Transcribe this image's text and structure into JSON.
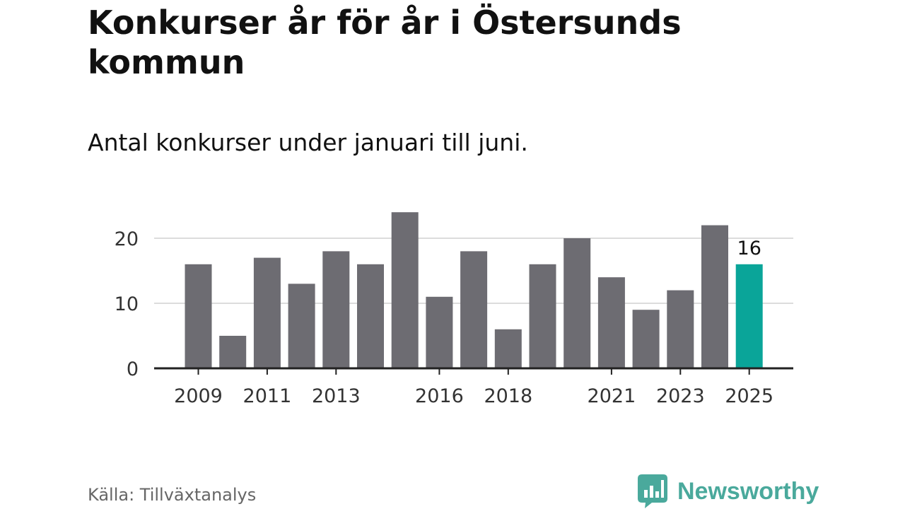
{
  "header": {
    "title": "Konkurser år för år i Östersunds kommun",
    "subtitle": "Antal konkurser under januari till juni."
  },
  "chart_data": {
    "type": "bar",
    "categories": [
      "2009",
      "2010",
      "2011",
      "2012",
      "2013",
      "2014",
      "2015",
      "2016",
      "2017",
      "2018",
      "2019",
      "2020",
      "2021",
      "2022",
      "2023",
      "2024",
      "2025"
    ],
    "values": [
      16,
      5,
      17,
      13,
      18,
      16,
      24,
      11,
      18,
      6,
      16,
      20,
      14,
      9,
      12,
      22,
      16
    ],
    "x_tick_labels": [
      "2009",
      "2011",
      "2013",
      "2016",
      "2018",
      "2021",
      "2023",
      "2025"
    ],
    "y_ticks": [
      0,
      10,
      20
    ],
    "ylim": [
      0,
      24
    ],
    "grid": true,
    "highlight": {
      "category": "2025",
      "label": "16"
    },
    "colors": {
      "bar": "#6d6c72",
      "highlight": "#0aa599",
      "grid": "#dcdcdc",
      "axis": "#222222"
    }
  },
  "footer": {
    "source": "Källa: Tillväxtanalys",
    "brand": "Newsworthy",
    "brand_icon": "newsworthy-chart-icon",
    "brand_color": "#4aa99c"
  }
}
